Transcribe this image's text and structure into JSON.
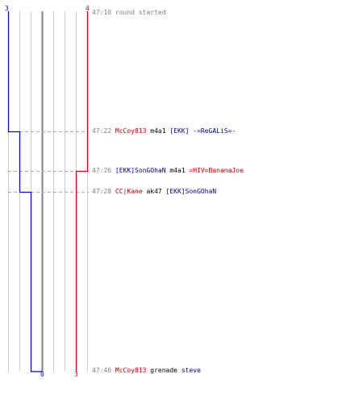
{
  "scores": {
    "blue_start": "3",
    "red_start": "4",
    "blue_end": "0",
    "red_end": "3"
  },
  "colors": {
    "blue": "#0000cc",
    "red": "#cc0000",
    "name_red": "#c00000",
    "name_blue": "#00008b",
    "time_gray": "#808080",
    "grid": "#cccccc",
    "center": "#808080"
  },
  "events": [
    {
      "time": "47:10",
      "parts": [
        {
          "text": "round started",
          "color": "gray"
        }
      ]
    },
    {
      "time": "47:22",
      "parts": [
        {
          "text": "McCoy813",
          "color": "red"
        },
        {
          "text": " m4a1 ",
          "color": "plain"
        },
        {
          "text": "[EKK] -=ReGALiS=-",
          "color": "blue"
        }
      ]
    },
    {
      "time": "47:26",
      "parts": [
        {
          "text": "[EKK]SonGOhaN",
          "color": "blue"
        },
        {
          "text": " m4a1 ",
          "color": "plain"
        },
        {
          "text": "=HIV=BananaJoe",
          "color": "red"
        }
      ]
    },
    {
      "time": "47:28",
      "parts": [
        {
          "text": "CC|Kane",
          "color": "red"
        },
        {
          "text": " ak47 ",
          "color": "plain"
        },
        {
          "text": "[EKK]SonGOhaN",
          "color": "blue"
        }
      ]
    },
    {
      "time": "47:46",
      "parts": [
        {
          "text": "McCoy813",
          "color": "red"
        },
        {
          "text": " grenade ",
          "color": "plain"
        },
        {
          "text": "steve",
          "color": "blue"
        }
      ]
    }
  ]
}
